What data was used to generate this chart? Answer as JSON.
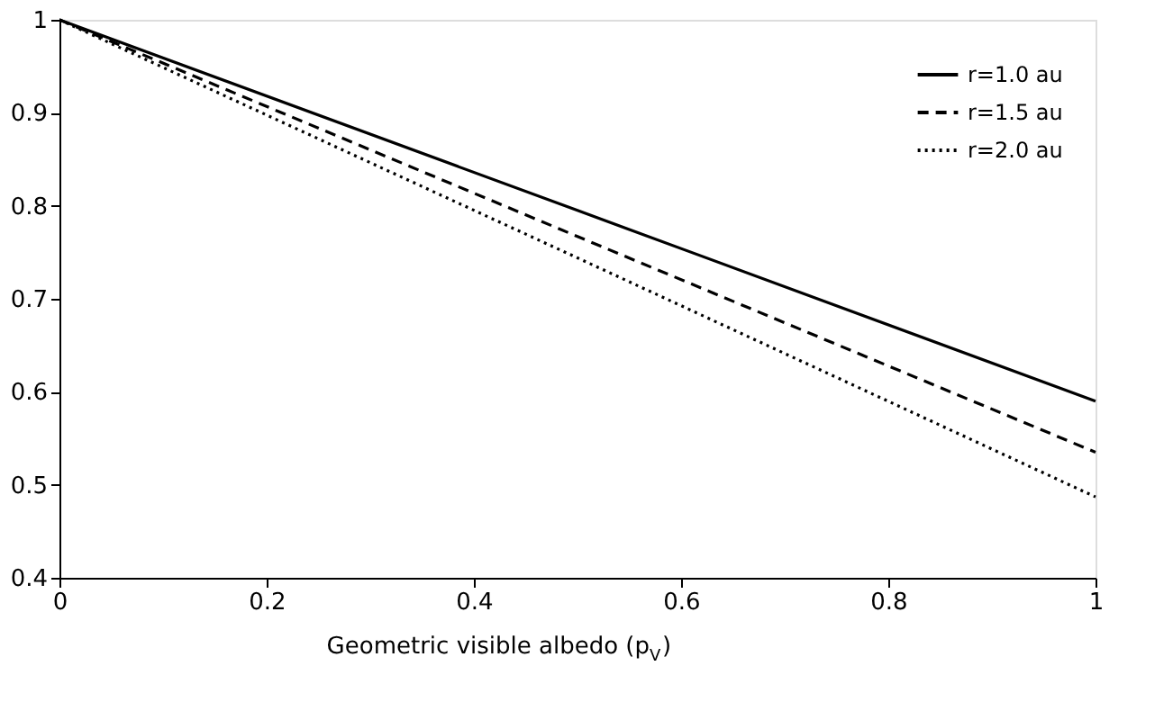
{
  "chart_data": {
    "type": "line",
    "xlabel": "Geometric visible albedo (p$_{V}$)",
    "x": [
      0,
      0.5,
      1
    ],
    "series": [
      {
        "name": "r=1.0 au",
        "color": "#000000",
        "line_style": "solid",
        "values": [
          1,
          0.795,
          0.59
        ]
      },
      {
        "name": "r=1.5 au",
        "color": "#000000",
        "line_style": "dashed",
        "values": [
          1,
          0.767,
          0.535
        ]
      },
      {
        "name": "r=2.0 au",
        "color": "#000000",
        "line_style": "dotted",
        "values": [
          1,
          0.744,
          0.487
        ]
      }
    ],
    "xlim": [
      0,
      1
    ],
    "xticks": [
      0,
      0.2,
      0.4,
      0.6,
      0.8,
      1
    ],
    "ylim": [
      0.4,
      1
    ],
    "yticks": [
      0.4,
      0.5,
      0.6,
      0.7,
      0.8,
      0.9,
      1
    ],
    "grid": false,
    "legend": "top right",
    "marker": "none"
  }
}
